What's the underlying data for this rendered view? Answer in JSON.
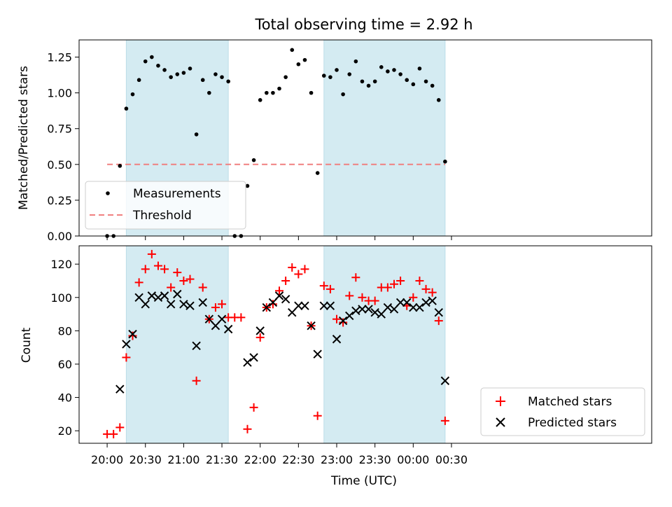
{
  "chart_data": {
    "title": "Total observing time = 2.92 h",
    "xlabel": "Time (UTC)",
    "x_unit": "minutes since 20:00 UTC",
    "xlim": [
      -22,
      427
    ],
    "x_ticks": [
      {
        "value": 0,
        "label": "20:00"
      },
      {
        "value": 30,
        "label": "20:30"
      },
      {
        "value": 60,
        "label": "21:00"
      },
      {
        "value": 90,
        "label": "21:30"
      },
      {
        "value": 120,
        "label": "22:00"
      },
      {
        "value": 150,
        "label": "22:30"
      },
      {
        "value": 180,
        "label": "23:00"
      },
      {
        "value": 210,
        "label": "23:30"
      },
      {
        "value": 240,
        "label": "00:00"
      },
      {
        "value": 270,
        "label": "00:30"
      }
    ],
    "shaded_intervals": [
      [
        15,
        95
      ],
      [
        170,
        265
      ]
    ],
    "shade_color": "#d4ebf2",
    "panels": [
      {
        "type": "scatter",
        "ylabel": "Matched/Predicted stars",
        "ylim": [
          0,
          1.37
        ],
        "y_ticks": [
          {
            "value": 0,
            "label": "0.00"
          },
          {
            "value": 0.25,
            "label": "0.25"
          },
          {
            "value": 0.5,
            "label": "0.50"
          },
          {
            "value": 0.75,
            "label": "0.75"
          },
          {
            "value": 1.0,
            "label": "1.00"
          },
          {
            "value": 1.25,
            "label": "1.25"
          }
        ],
        "legend_position": "lower-left",
        "threshold": {
          "name": "Threshold",
          "value": 0.5,
          "x_range": [
            0,
            265
          ],
          "color": "#f08080"
        },
        "series": [
          {
            "name": "Measurements",
            "marker": "dot",
            "color": "#000000",
            "x": [
              0,
              5,
              10,
              15,
              20,
              25,
              30,
              35,
              40,
              45,
              50,
              55,
              60,
              65,
              70,
              75,
              80,
              85,
              90,
              95,
              100,
              105,
              110,
              115,
              120,
              125,
              130,
              135,
              140,
              145,
              150,
              155,
              160,
              165,
              170,
              175,
              180,
              185,
              190,
              195,
              200,
              205,
              210,
              215,
              220,
              225,
              230,
              235,
              240,
              245,
              250,
              255,
              260,
              265
            ],
            "y": [
              0.0,
              0.0,
              0.49,
              0.89,
              0.99,
              1.09,
              1.22,
              1.25,
              1.19,
              1.16,
              1.11,
              1.13,
              1.14,
              1.17,
              0.71,
              1.09,
              1.0,
              1.13,
              1.11,
              1.08,
              0.0,
              0.0,
              0.35,
              0.53,
              0.95,
              1.0,
              1.0,
              1.03,
              1.11,
              1.3,
              1.2,
              1.23,
              1.0,
              0.44,
              1.12,
              1.11,
              1.16,
              0.99,
              1.13,
              1.22,
              1.08,
              1.05,
              1.08,
              1.18,
              1.15,
              1.16,
              1.13,
              1.09,
              1.06,
              1.17,
              1.08,
              1.05,
              0.95,
              0.52
            ]
          }
        ]
      },
      {
        "type": "scatter",
        "ylabel": "Count",
        "ylim": [
          12.5,
          131
        ],
        "y_ticks": [
          {
            "value": 20,
            "label": "20"
          },
          {
            "value": 40,
            "label": "40"
          },
          {
            "value": 60,
            "label": "60"
          },
          {
            "value": 80,
            "label": "80"
          },
          {
            "value": 100,
            "label": "100"
          },
          {
            "value": 120,
            "label": "120"
          }
        ],
        "legend_position": "lower-right",
        "series": [
          {
            "name": "Matched stars",
            "marker": "plus",
            "color": "#ff0000",
            "x": [
              0,
              5,
              10,
              15,
              20,
              25,
              30,
              35,
              40,
              45,
              50,
              55,
              60,
              65,
              70,
              75,
              80,
              85,
              90,
              95,
              100,
              105,
              110,
              115,
              120,
              125,
              130,
              135,
              140,
              145,
              150,
              155,
              160,
              165,
              170,
              175,
              180,
              185,
              190,
              195,
              200,
              205,
              210,
              215,
              220,
              225,
              230,
              235,
              240,
              245,
              250,
              255,
              260,
              265
            ],
            "y": [
              18,
              18,
              22,
              64,
              77,
              109,
              117,
              126,
              119,
              117,
              106,
              115,
              110,
              111,
              50,
              106,
              87,
              94,
              96,
              88,
              88,
              88,
              21,
              34,
              76,
              94,
              96,
              104,
              110,
              118,
              114,
              117,
              83,
              29,
              107,
              105,
              87,
              85,
              101,
              112,
              100,
              98,
              98,
              106,
              106,
              108,
              110,
              95,
              100,
              110,
              105,
              103,
              86,
              26
            ]
          },
          {
            "name": "Predicted stars",
            "marker": "x",
            "color": "#000000",
            "x": [
              10,
              15,
              20,
              25,
              30,
              35,
              40,
              45,
              50,
              55,
              60,
              65,
              70,
              75,
              80,
              85,
              90,
              95,
              110,
              115,
              120,
              125,
              130,
              135,
              140,
              145,
              150,
              155,
              160,
              165,
              170,
              175,
              180,
              185,
              190,
              195,
              200,
              205,
              210,
              215,
              220,
              225,
              230,
              235,
              240,
              245,
              250,
              255,
              260,
              265
            ],
            "y": [
              45,
              72,
              78,
              100,
              96,
              101,
              100,
              101,
              96,
              102,
              96,
              95,
              71,
              97,
              87,
              83,
              87,
              81,
              61,
              64,
              80,
              94,
              97,
              101,
              99,
              91,
              95,
              95,
              83,
              66,
              95,
              95,
              75,
              86,
              89,
              92,
              93,
              93,
              91,
              90,
              94,
              93,
              97,
              97,
              94,
              94,
              97,
              98,
              91,
              50
            ]
          }
        ]
      }
    ]
  }
}
